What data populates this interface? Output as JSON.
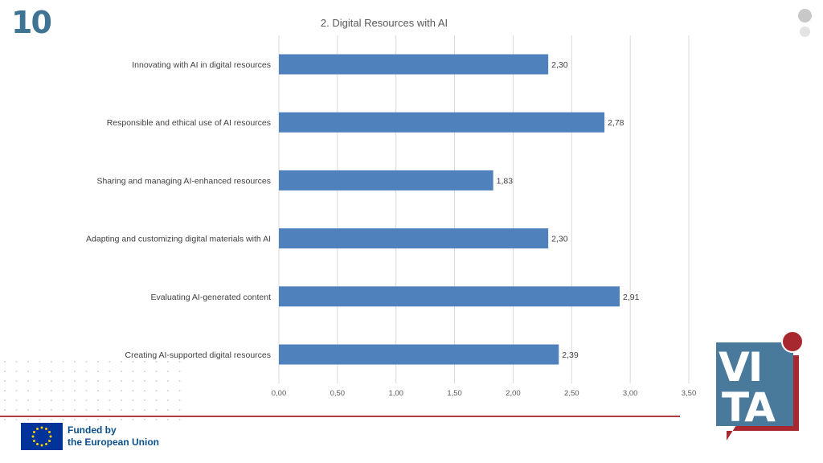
{
  "slide": {
    "number": "10"
  },
  "footer": {
    "funding_line1": "Funded by",
    "funding_line2": "the European Union"
  },
  "branding": {
    "logo_text_top": "VI",
    "logo_text_bottom": "TA"
  },
  "icons": {
    "eu_flag": "eu-flag-icon",
    "vita_logo": "vita-logo-icon",
    "nav_dots": "nav-dots-icon",
    "dot_pattern": "dot-pattern-decoration"
  },
  "colors": {
    "bar": "#4f81bd",
    "slide_number": "#3f7393",
    "accent_red": "#b03a3e",
    "eu_blue": "#0b4f8a",
    "logo_blue": "#4a7a9b"
  },
  "chart_data": {
    "type": "bar",
    "orientation": "horizontal",
    "title": "2. Digital Resources with AI",
    "categories": [
      "Innovating with AI in digital resources",
      "Responsible and ethical use of AI resources",
      "Sharing and managing AI-enhanced resources",
      "Adapting and customizing digital materials with AI",
      "Evaluating AI-generated content",
      "Creating AI-supported digital resources"
    ],
    "values": [
      2.3,
      2.78,
      1.83,
      2.3,
      2.91,
      2.39
    ],
    "data_labels": [
      "2,30",
      "2,78",
      "1,83",
      "2,30",
      "2,91",
      "2,39"
    ],
    "xlim": [
      0,
      3.5
    ],
    "xticks": [
      0,
      0.5,
      1,
      1.5,
      2,
      2.5,
      3,
      3.5
    ],
    "xtick_labels": [
      "0,00",
      "0,50",
      "1,00",
      "1,50",
      "2,00",
      "2,50",
      "3,00",
      "3,50"
    ],
    "grid": true,
    "legend": "none"
  }
}
